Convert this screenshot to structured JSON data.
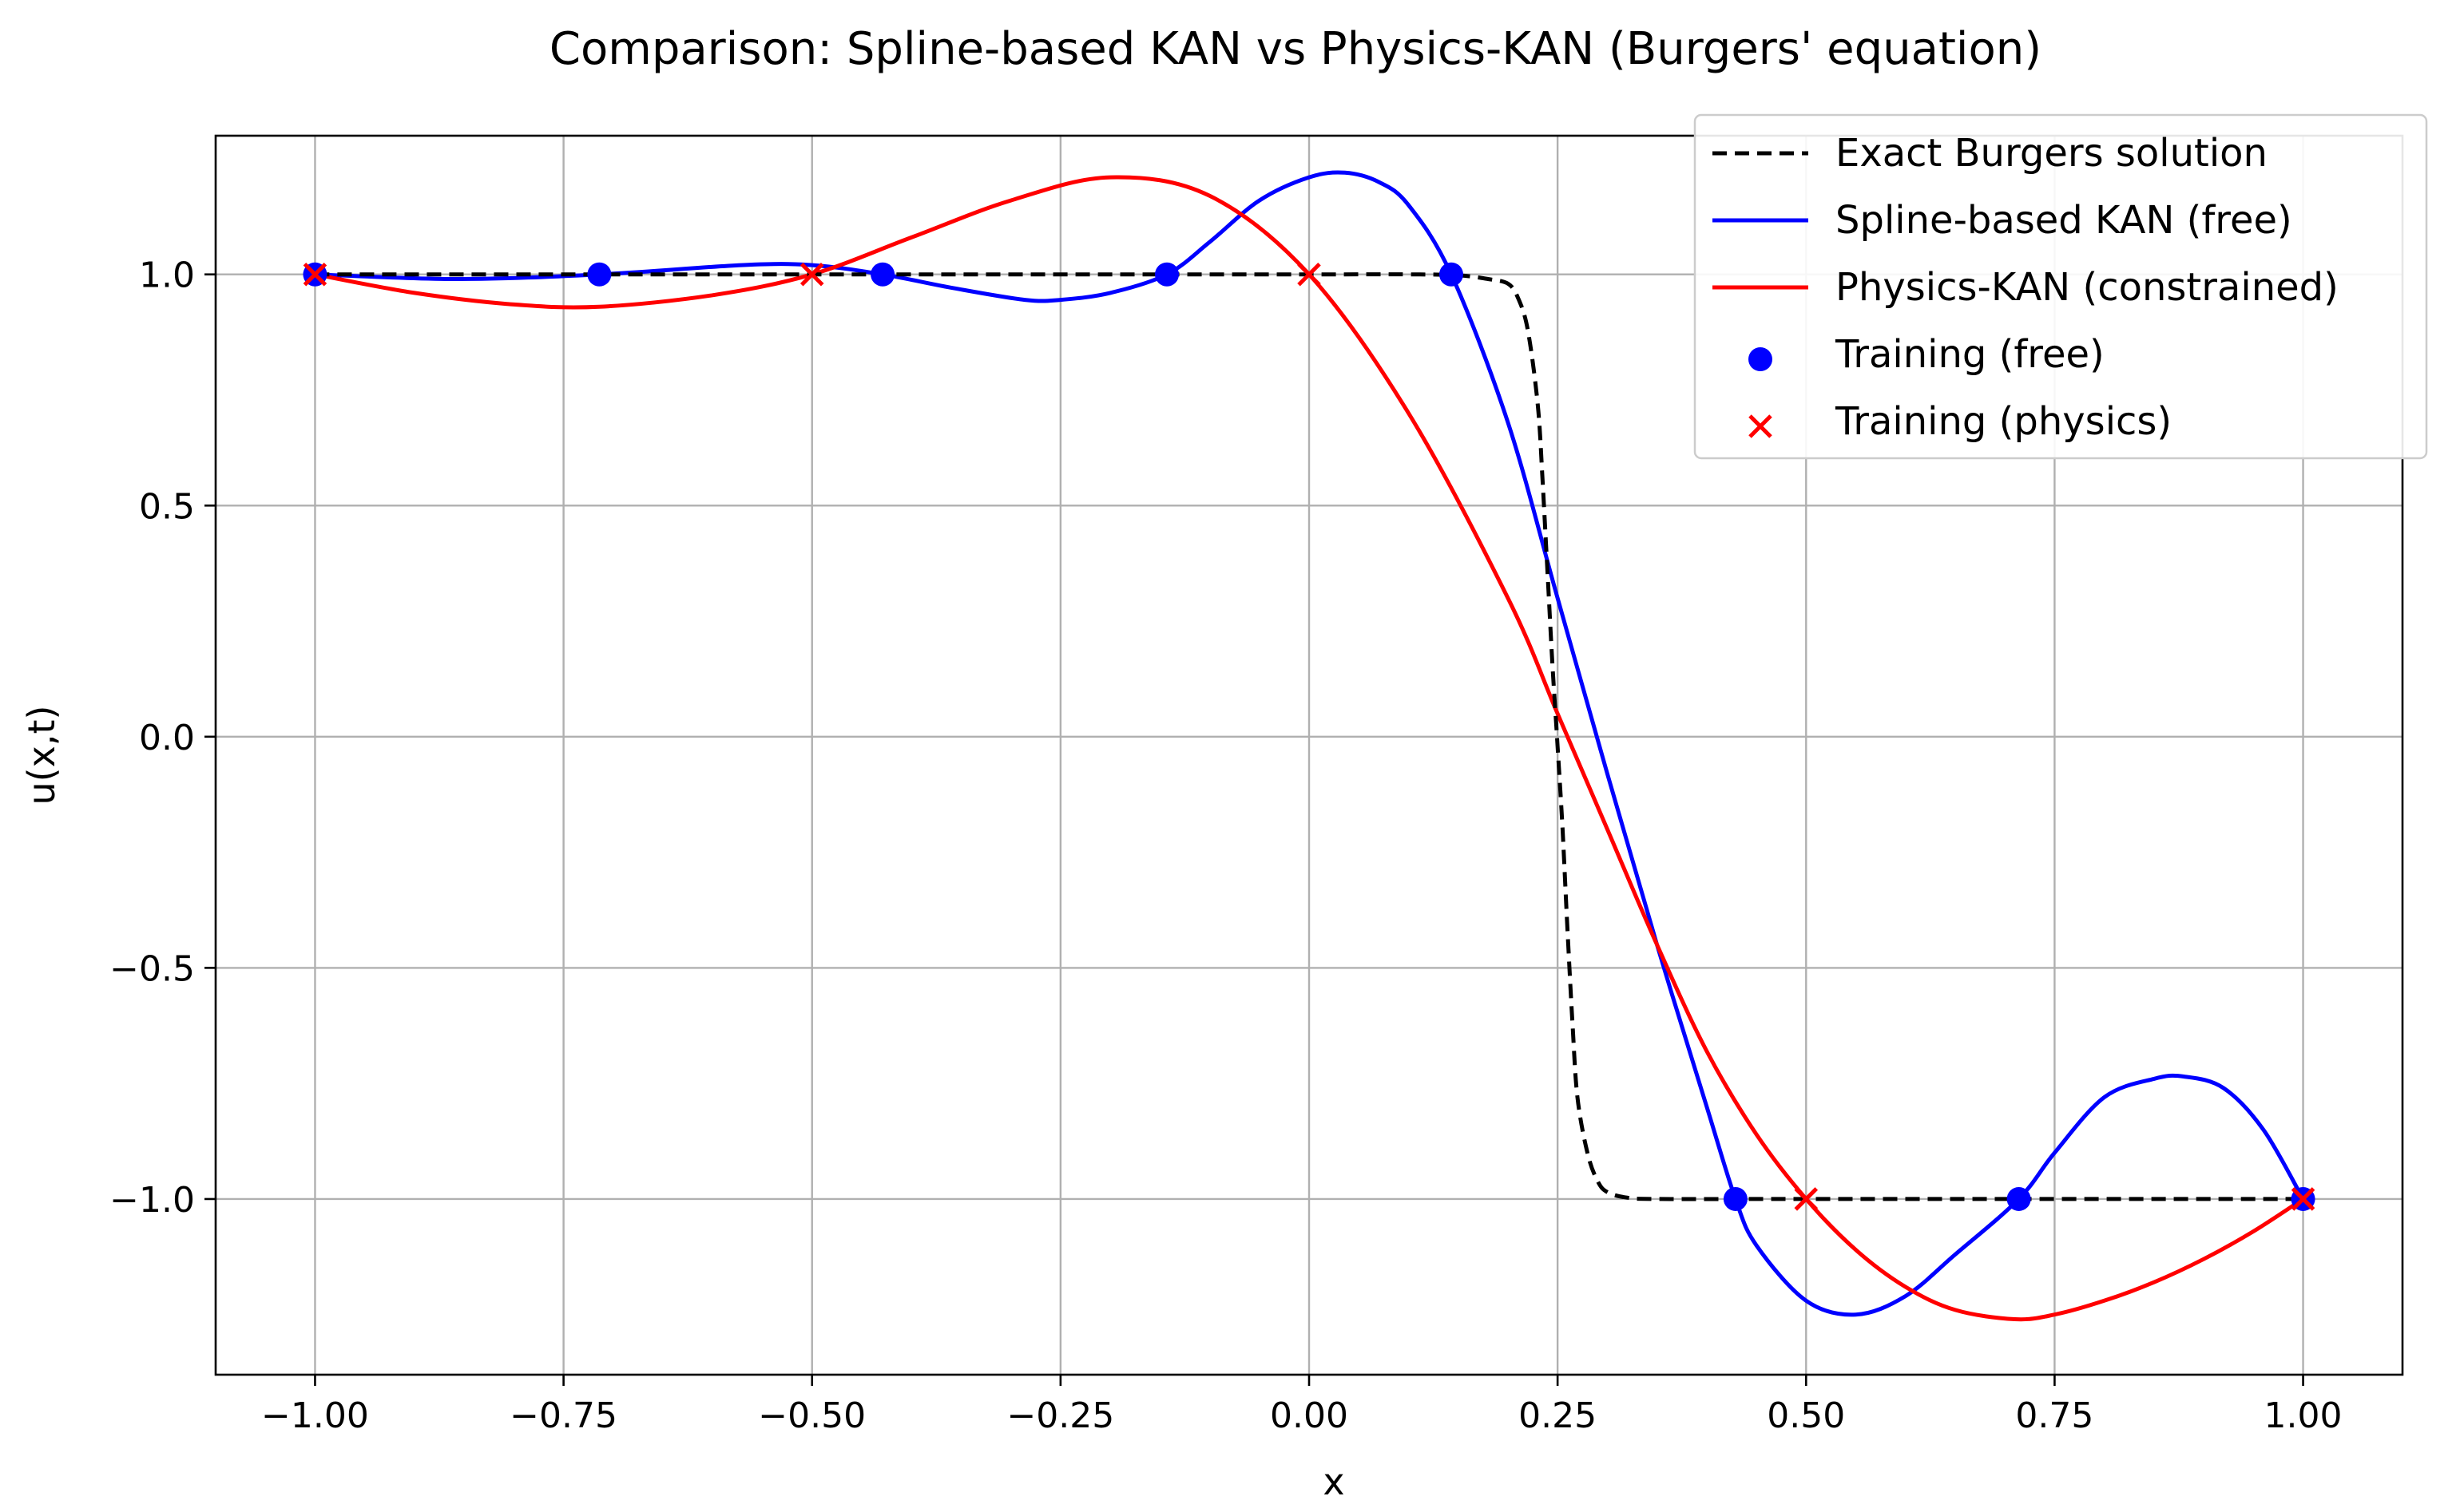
{
  "chart_data": {
    "type": "line",
    "title": "Comparison: Spline-based KAN vs Physics-KAN (Burgers' equation)",
    "xlabel": "x",
    "ylabel": "u(x,t)",
    "xlim": [
      -1.1,
      1.1
    ],
    "ylim": [
      -1.38,
      1.3
    ],
    "xticks": [
      -1.0,
      -0.75,
      -0.5,
      -0.25,
      0.0,
      0.25,
      0.5,
      0.75,
      1.0
    ],
    "xtick_labels": [
      "−1.00",
      "−0.75",
      "−0.50",
      "−0.25",
      "0.00",
      "0.25",
      "0.50",
      "0.75",
      "1.00"
    ],
    "yticks": [
      -1.0,
      -0.5,
      0.0,
      0.5,
      1.0
    ],
    "ytick_labels": [
      "−1.0",
      "−0.5",
      "0.0",
      "0.5",
      "1.0"
    ],
    "grid": true,
    "legend_position": "top-right",
    "series": [
      {
        "name": "Exact Burgers solution",
        "style": "dashed",
        "color": "#000000",
        "x": [
          -1.0,
          -0.5,
          0.0,
          0.1,
          0.15,
          0.18,
          0.2,
          0.21,
          0.22,
          0.23,
          0.235,
          0.24,
          0.245,
          0.25,
          0.255,
          0.26,
          0.265,
          0.27,
          0.28,
          0.29,
          0.3,
          0.32,
          0.35,
          0.5,
          1.0
        ],
        "y": [
          1.0,
          1.0,
          1.0,
          1.0,
          0.998,
          0.99,
          0.98,
          0.95,
          0.88,
          0.72,
          0.55,
          0.35,
          0.15,
          -0.02,
          -0.2,
          -0.42,
          -0.62,
          -0.78,
          -0.9,
          -0.96,
          -0.985,
          -0.997,
          -1.0,
          -1.0,
          -1.0
        ]
      },
      {
        "name": "Spline-based KAN (free)",
        "style": "solid",
        "color": "#0000ff",
        "x": [
          -1.0,
          -0.857,
          -0.714,
          -0.571,
          -0.5,
          -0.429,
          -0.357,
          -0.286,
          -0.25,
          -0.2,
          -0.143,
          -0.1,
          -0.05,
          0.0,
          0.036,
          0.07,
          0.1,
          0.143,
          0.2,
          0.25,
          0.3,
          0.35,
          0.4,
          0.429,
          0.45,
          0.5,
          0.55,
          0.6,
          0.65,
          0.714,
          0.75,
          0.8,
          0.85,
          0.88,
          0.92,
          0.96,
          1.0
        ],
        "y": [
          1.0,
          0.99,
          1.0,
          1.02,
          1.02,
          1.0,
          0.97,
          0.945,
          0.945,
          0.96,
          1.0,
          1.07,
          1.16,
          1.21,
          1.22,
          1.2,
          1.15,
          1.0,
          0.68,
          0.3,
          -0.08,
          -0.45,
          -0.8,
          -1.0,
          -1.1,
          -1.22,
          -1.25,
          -1.21,
          -1.12,
          -1.0,
          -0.9,
          -0.78,
          -0.74,
          -0.735,
          -0.76,
          -0.85,
          -1.0
        ]
      },
      {
        "name": "Physics-KAN (constrained)",
        "style": "solid",
        "color": "#ff0000",
        "x": [
          -1.0,
          -0.9,
          -0.8,
          -0.714,
          -0.6,
          -0.5,
          -0.4,
          -0.3,
          -0.2,
          -0.1,
          0.0,
          0.1,
          0.2,
          0.25,
          0.3,
          0.35,
          0.4,
          0.45,
          0.5,
          0.55,
          0.6,
          0.65,
          0.71,
          0.75,
          0.8,
          0.85,
          0.9,
          0.95,
          1.0
        ],
        "y": [
          1.0,
          0.96,
          0.935,
          0.93,
          0.955,
          1.0,
          1.08,
          1.16,
          1.21,
          1.17,
          1.0,
          0.7,
          0.3,
          0.05,
          -0.2,
          -0.45,
          -0.68,
          -0.86,
          -1.0,
          -1.11,
          -1.19,
          -1.24,
          -1.26,
          -1.25,
          -1.22,
          -1.18,
          -1.13,
          -1.07,
          -1.0
        ]
      }
    ],
    "scatter_series": [
      {
        "name": "Training (free)",
        "marker": "circle",
        "color": "#0000ff",
        "x": [
          -1.0,
          -0.714,
          -0.429,
          -0.143,
          0.143,
          0.429,
          0.714,
          1.0
        ],
        "y": [
          1.0,
          1.0,
          1.0,
          1.0,
          1.0,
          -1.0,
          -1.0,
          -1.0
        ]
      },
      {
        "name": "Training (physics)",
        "marker": "x",
        "color": "#ff0000",
        "x": [
          -1.0,
          -0.5,
          0.0,
          0.5,
          1.0
        ],
        "y": [
          1.0,
          1.0,
          1.0,
          -1.0,
          -1.0
        ]
      }
    ]
  }
}
